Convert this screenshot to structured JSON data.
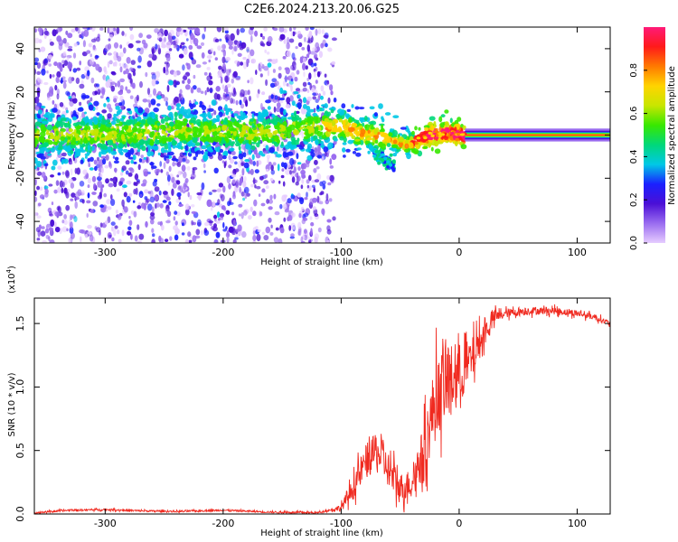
{
  "figure": {
    "title": "C2E6.2024.213.20.06.G25"
  },
  "chart_data": [
    {
      "type": "heatmap",
      "xlabel": "Height of straight line (km)",
      "ylabel": "Frequency (Hz)",
      "xlim": [
        -360,
        128
      ],
      "ylim": [
        -50,
        50
      ],
      "x_ticks": [
        -300,
        -200,
        -100,
        0,
        100
      ],
      "y_ticks": [
        -40,
        -20,
        0,
        20,
        40
      ],
      "colorbar": {
        "label": "Normalized spectral amplitude",
        "range": [
          0,
          1
        ],
        "ticks": [
          "0.0",
          "0.2",
          "0.4",
          "0.6",
          "0.8"
        ],
        "stops": [
          "#e6ccff",
          "#9a6cf0",
          "#4b0fd6",
          "#1a20ff",
          "#00c8e6",
          "#00d87a",
          "#38e800",
          "#c8e600",
          "#ffd400",
          "#ff7a00",
          "#ff1a1a",
          "#ff1a78"
        ]
      },
      "ridge": [
        {
          "x": -355,
          "f": 0.0
        },
        {
          "x": -330,
          "f": 0.5
        },
        {
          "x": -300,
          "f": 0.0
        },
        {
          "x": -260,
          "f": 1.0
        },
        {
          "x": -230,
          "f": 2.0
        },
        {
          "x": -200,
          "f": 1.5
        },
        {
          "x": -160,
          "f": 1.0
        },
        {
          "x": -120,
          "f": 4.0
        },
        {
          "x": -100,
          "f": 4.0
        },
        {
          "x": -85,
          "f": 1.0
        },
        {
          "x": -70,
          "f": 0.0
        },
        {
          "x": -58,
          "f": -2.0
        },
        {
          "x": -45,
          "f": -5.0
        },
        {
          "x": -35,
          "f": -2.0
        },
        {
          "x": -25,
          "f": 0.0
        },
        {
          "x": -10,
          "f": 1.0
        },
        {
          "x": 5,
          "f": 0.0
        },
        {
          "x": 128,
          "f": 0.0
        }
      ],
      "secondary_branch": [
        {
          "x": -72,
          "f": -8.0
        },
        {
          "x": -60,
          "f": -13.0
        },
        {
          "x": -55,
          "f": -15.0
        }
      ],
      "noise_region_x": [
        -360,
        -115
      ],
      "bright_band_x": [
        5,
        128
      ]
    },
    {
      "type": "line",
      "xlabel": "Height of straight line (km)",
      "ylabel": "SNR (10 * v/v)",
      "y_multiplier": "(x10^4)",
      "xlim": [
        -360,
        128
      ],
      "ylim": [
        0,
        1.7
      ],
      "x_ticks": [
        -300,
        -200,
        -100,
        0,
        100
      ],
      "y_ticks": [
        "0.0",
        "0.5",
        "1.0",
        "1.5"
      ],
      "color": "#f02a20",
      "series": [
        {
          "values": [
            {
              "x": -360,
              "y": 0.01
            },
            {
              "x": -330,
              "y": 0.03
            },
            {
              "x": -300,
              "y": 0.035
            },
            {
              "x": -270,
              "y": 0.025
            },
            {
              "x": -240,
              "y": 0.02
            },
            {
              "x": -200,
              "y": 0.03
            },
            {
              "x": -160,
              "y": 0.015
            },
            {
              "x": -120,
              "y": 0.01
            },
            {
              "x": -100,
              "y": 0.05
            },
            {
              "x": -90,
              "y": 0.2
            },
            {
              "x": -80,
              "y": 0.4
            },
            {
              "x": -70,
              "y": 0.5
            },
            {
              "x": -60,
              "y": 0.35
            },
            {
              "x": -50,
              "y": 0.2
            },
            {
              "x": -40,
              "y": 0.25
            },
            {
              "x": -30,
              "y": 0.5
            },
            {
              "x": -20,
              "y": 0.9
            },
            {
              "x": -10,
              "y": 1.05
            },
            {
              "x": 0,
              "y": 1.1
            },
            {
              "x": 10,
              "y": 1.2
            },
            {
              "x": 20,
              "y": 1.4
            },
            {
              "x": 30,
              "y": 1.55
            },
            {
              "x": 40,
              "y": 1.58
            },
            {
              "x": 60,
              "y": 1.6
            },
            {
              "x": 80,
              "y": 1.6
            },
            {
              "x": 100,
              "y": 1.58
            },
            {
              "x": 115,
              "y": 1.55
            },
            {
              "x": 128,
              "y": 1.5
            }
          ],
          "noise_amplitude": [
            {
              "x": -360,
              "a": 0.01
            },
            {
              "x": -110,
              "a": 0.01
            },
            {
              "x": -100,
              "a": 0.04
            },
            {
              "x": -80,
              "a": 0.2
            },
            {
              "x": -60,
              "a": 0.2
            },
            {
              "x": -40,
              "a": 0.15
            },
            {
              "x": -20,
              "a": 0.45
            },
            {
              "x": 0,
              "a": 0.35
            },
            {
              "x": 20,
              "a": 0.15
            },
            {
              "x": 35,
              "a": 0.05
            },
            {
              "x": 128,
              "a": 0.03
            }
          ]
        }
      ]
    }
  ]
}
